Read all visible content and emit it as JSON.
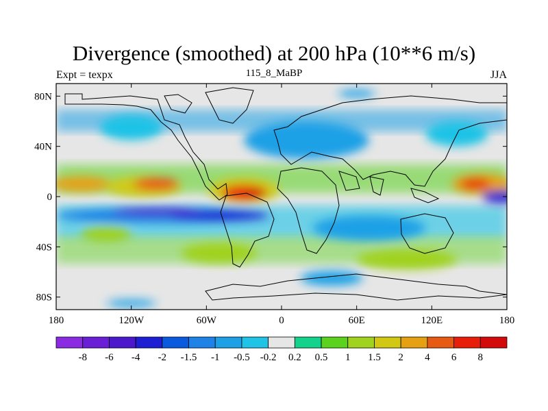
{
  "title": "Divergence (smoothed) at 200 hPa (10**6 m/s)",
  "left_label": "Expt = texpx",
  "center_label": "115_8_MaBP",
  "right_label": "JJA",
  "chart_data": {
    "type": "heatmap",
    "title": "Divergence (smoothed) at 200 hPa (10**6 m/s)",
    "units": "10**6 m/s",
    "experiment": "texpx",
    "period": "115_8_MaBP",
    "season": "JJA",
    "lon_ticks": [
      "180",
      "120W",
      "60W",
      "0",
      "60E",
      "120E",
      "180"
    ],
    "lon_range": [
      -180,
      180
    ],
    "lat_ticks": [
      "80N",
      "40N",
      "0",
      "40S",
      "80S"
    ],
    "lat_range": [
      -90,
      90
    ],
    "colorbar": {
      "labels": [
        "-8",
        "-6",
        "-4",
        "-2",
        "-1.5",
        "-1",
        "-0.5",
        "-0.2",
        "0.2",
        "0.5",
        "1",
        "1.5",
        "2",
        "4",
        "6",
        "8"
      ],
      "colors": [
        "#8a2be2",
        "#6a1ed6",
        "#4b18cc",
        "#1e1ed2",
        "#0a5ae0",
        "#1e82e6",
        "#1ea0e6",
        "#1ec3e6",
        "#e6e6e6",
        "#14d28c",
        "#5ad21e",
        "#a0d21e",
        "#d2c814",
        "#e6a014",
        "#e65a14",
        "#e61e0a",
        "#d20a0a"
      ]
    },
    "regions": [
      {
        "lon": -160,
        "lat": 10,
        "rx": 24,
        "ry": 6,
        "level": 13
      },
      {
        "lon": -110,
        "lat": 8,
        "rx": 30,
        "ry": 8,
        "level": 12
      },
      {
        "lon": -100,
        "lat": 10,
        "rx": 18,
        "ry": 5,
        "level": 14
      },
      {
        "lon": -30,
        "lat": 5,
        "rx": 28,
        "ry": 10,
        "level": 12
      },
      {
        "lon": -30,
        "lat": 3,
        "rx": 18,
        "ry": 6,
        "level": 15
      },
      {
        "lon": -20,
        "lat": 3,
        "rx": 8,
        "ry": 4,
        "level": 16
      },
      {
        "lon": 160,
        "lat": 10,
        "rx": 24,
        "ry": 8,
        "level": 13
      },
      {
        "lon": 155,
        "lat": 10,
        "rx": 12,
        "ry": 4,
        "level": 15
      },
      {
        "lon": -95,
        "lat": -15,
        "rx": 85,
        "ry": 6,
        "level": 5
      },
      {
        "lon": -50,
        "lat": -15,
        "rx": 40,
        "ry": 4,
        "level": 3
      },
      {
        "lon": -100,
        "lat": -12,
        "rx": 35,
        "ry": 3,
        "level": 2
      },
      {
        "lon": 70,
        "lat": -25,
        "rx": 45,
        "ry": 10,
        "level": 6
      },
      {
        "lon": 175,
        "lat": 0,
        "rx": 15,
        "ry": 5,
        "level": 3
      },
      {
        "lon": 20,
        "lat": 45,
        "rx": 50,
        "ry": 15,
        "level": 6
      },
      {
        "lon": -120,
        "lat": 55,
        "rx": 25,
        "ry": 10,
        "level": 7
      },
      {
        "lon": 140,
        "lat": 50,
        "rx": 25,
        "ry": 10,
        "level": 7
      },
      {
        "lon": -140,
        "lat": -30,
        "rx": 20,
        "ry": 6,
        "level": 11
      },
      {
        "lon": -50,
        "lat": -45,
        "rx": 30,
        "ry": 8,
        "level": 11
      },
      {
        "lon": 100,
        "lat": -50,
        "rx": 40,
        "ry": 8,
        "level": 11
      },
      {
        "lon": 40,
        "lat": -65,
        "rx": 25,
        "ry": 6,
        "level": 6
      },
      {
        "lon": -120,
        "lat": -85,
        "rx": 20,
        "ry": 3,
        "level": 6
      },
      {
        "lon": 60,
        "lat": 82,
        "rx": 15,
        "ry": 3,
        "level": 6
      }
    ]
  }
}
